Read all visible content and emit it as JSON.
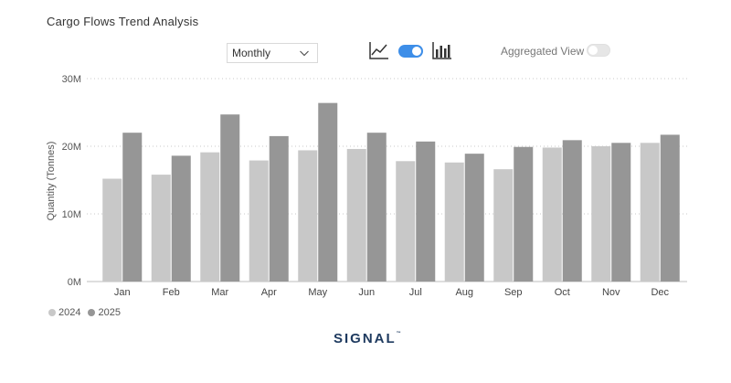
{
  "title": "Cargo Flows Trend Analysis",
  "period_select": {
    "value": "Monthly"
  },
  "toggles": {
    "chart_type_on": true,
    "aggregated_view_label": "Aggregated View",
    "aggregated_view_on": false
  },
  "icons": {
    "line": "line-chart-icon",
    "bar": "bar-chart-icon",
    "chevron": "chevron-down-icon"
  },
  "logo": {
    "text": "SIGNAL",
    "tm": "™"
  },
  "chart_data": {
    "type": "bar",
    "ylabel": "Quantity (Tonnes)",
    "ylim": [
      0,
      30000000
    ],
    "yticks": [
      0,
      10000000,
      20000000,
      30000000
    ],
    "ytick_labels": [
      "0M",
      "10M",
      "20M",
      "30M"
    ],
    "categories": [
      "Jan",
      "Feb",
      "Mar",
      "Apr",
      "May",
      "Jun",
      "Jul",
      "Aug",
      "Sep",
      "Oct",
      "Nov",
      "Dec"
    ],
    "series": [
      {
        "name": "2024",
        "color": "#c8c8c8",
        "values": [
          15200000,
          15800000,
          19100000,
          17900000,
          19400000,
          19600000,
          17800000,
          17600000,
          16600000,
          19800000,
          20000000,
          20500000
        ]
      },
      {
        "name": "2025",
        "color": "#969696",
        "values": [
          22000000,
          18600000,
          24700000,
          21500000,
          26400000,
          22000000,
          20700000,
          18900000,
          19900000,
          20900000,
          20500000,
          21700000
        ]
      }
    ],
    "grid": true,
    "legend": "bottom-left"
  }
}
